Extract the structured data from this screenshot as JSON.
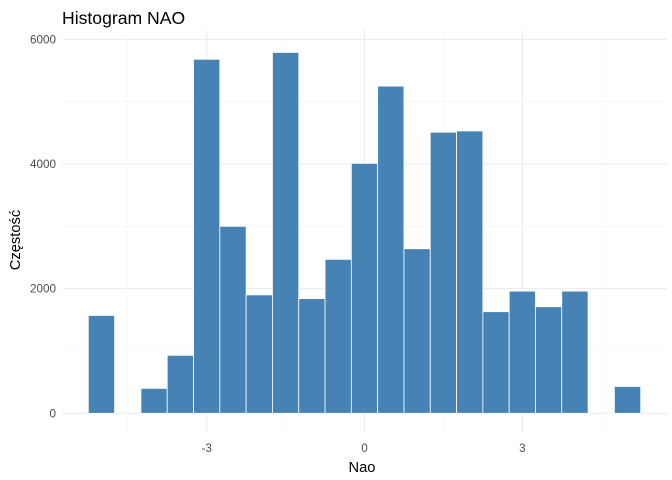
{
  "chart_data": {
    "type": "bar",
    "title": "Histogram NAO",
    "xlabel": "Nao",
    "ylabel": "Częstość",
    "bar_color": "#4682b4",
    "bar_outline": "#ffffff",
    "background": "#ffffff",
    "grid": true,
    "legend": "none",
    "bin_width": 0.5,
    "x_ticks": [
      -3,
      0,
      3
    ],
    "x_tick_labels": [
      "-3",
      "0",
      "3"
    ],
    "y_ticks": [
      0,
      2000,
      4000,
      6000
    ],
    "y_tick_labels": [
      "0",
      "2000",
      "4000",
      "6000"
    ],
    "xlim": [
      -5.75,
      5.75
    ],
    "ylim": [
      -300,
      6150
    ],
    "bins": [
      {
        "x": -5.0,
        "count": 1570
      },
      {
        "x": -4.0,
        "count": 400
      },
      {
        "x": -3.5,
        "count": 930
      },
      {
        "x": -3.0,
        "count": 5680
      },
      {
        "x": -2.5,
        "count": 3000
      },
      {
        "x": -2.0,
        "count": 1900
      },
      {
        "x": -1.5,
        "count": 5790
      },
      {
        "x": -1.0,
        "count": 1840
      },
      {
        "x": -0.5,
        "count": 2470
      },
      {
        "x": 0.0,
        "count": 4010
      },
      {
        "x": 0.5,
        "count": 5250
      },
      {
        "x": 1.0,
        "count": 2640
      },
      {
        "x": 1.5,
        "count": 4510
      },
      {
        "x": 2.0,
        "count": 4530
      },
      {
        "x": 2.5,
        "count": 1630
      },
      {
        "x": 3.0,
        "count": 1960
      },
      {
        "x": 3.5,
        "count": 1710
      },
      {
        "x": 4.0,
        "count": 1960
      },
      {
        "x": 5.0,
        "count": 430
      }
    ]
  }
}
